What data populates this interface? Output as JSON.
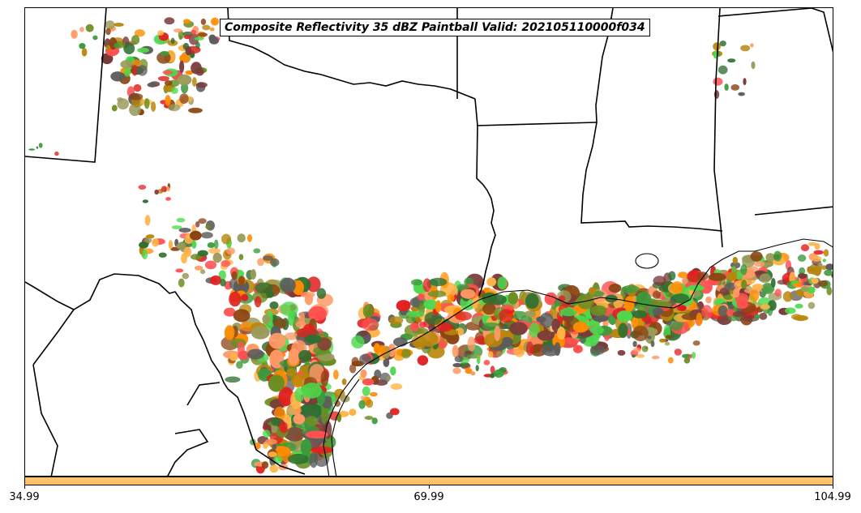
{
  "title": "Composite Reflectivity 35 dBZ Paintball Valid: 202105110000f034",
  "colorbar": {
    "color": "#ffc266",
    "ticks": [
      "34.99",
      "69.99",
      "104.99"
    ]
  },
  "members_palette": [
    "#4cd94c",
    "#ff8c00",
    "#ffb347",
    "#e02020",
    "#ff5050",
    "#2f6f2f",
    "#6b8e23",
    "#5c5c5c",
    "#8b4513",
    "#b8860b",
    "#9a9a5a",
    "#7a3a3a",
    "#ff9966",
    "#3c9a3c"
  ],
  "layers": [
    "state-borders",
    "coastline",
    "paintball-cells",
    "colorbar"
  ]
}
